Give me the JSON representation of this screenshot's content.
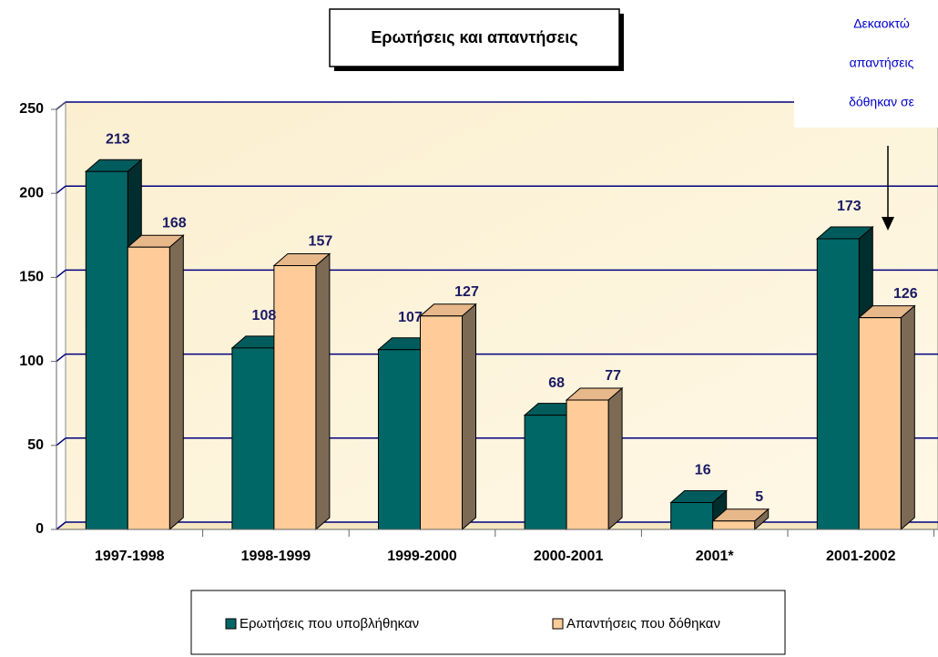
{
  "chart_data": {
    "type": "bar3d",
    "title": "Ερωτήσεις και απαντήσεις",
    "annotation_lines": [
      "Δεκαοκτώ",
      "απαντήσεις",
      "δόθηκαν σε"
    ],
    "categories": [
      "1997-1998",
      "1998-1999",
      "1999-2000",
      "2000-2001",
      "2001*",
      "2001-2002"
    ],
    "series": [
      {
        "name": "Ερωτήσεις που υποβλήθηκαν",
        "color": "#006666",
        "values": [
          213,
          108,
          107,
          68,
          16,
          173
        ]
      },
      {
        "name": "Απαντήσεις που δόθηκαν",
        "color": "#ffcc99",
        "values": [
          168,
          157,
          127,
          77,
          5,
          126
        ]
      }
    ],
    "ylim": [
      0,
      250
    ],
    "yticks": [
      0,
      50,
      100,
      150,
      200,
      250
    ],
    "grid": true
  }
}
